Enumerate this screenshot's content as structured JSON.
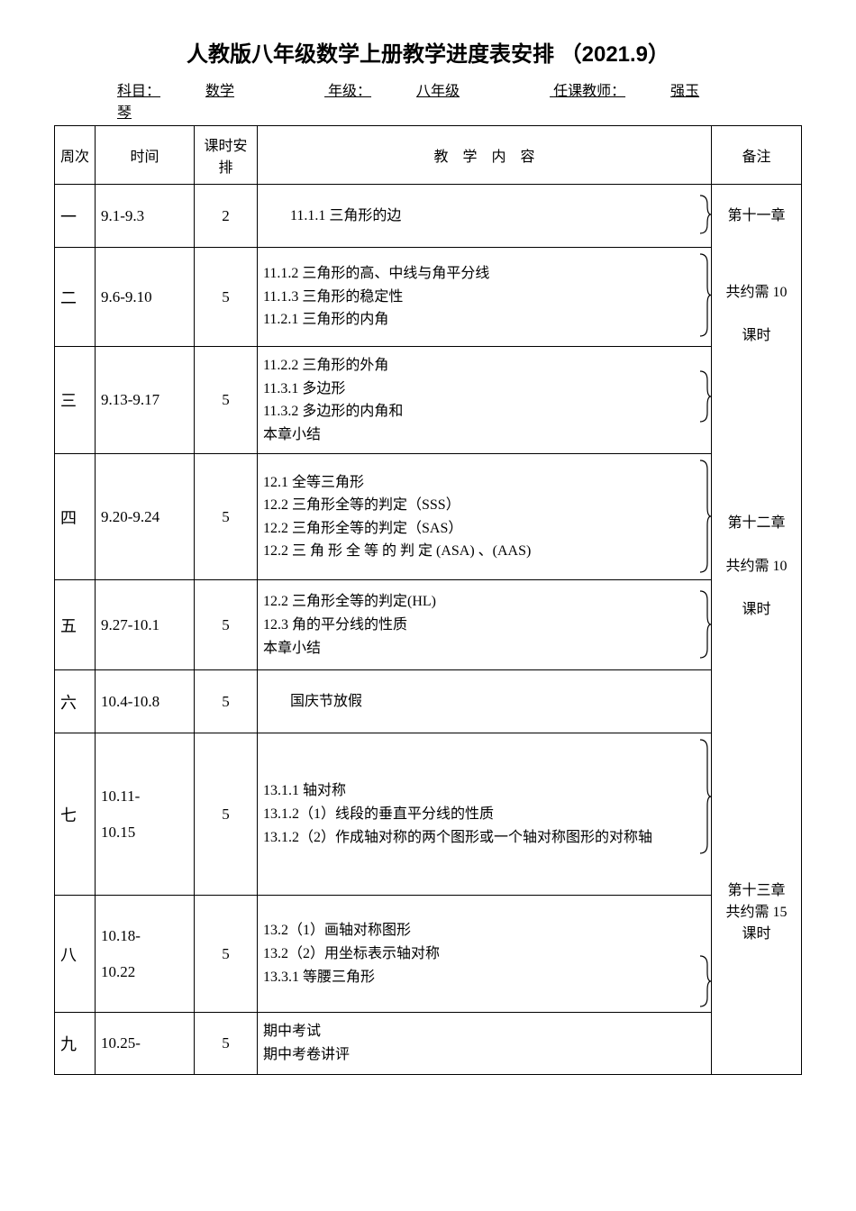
{
  "title": "人教版八年级数学上册教学进度表安排 （2021.9）",
  "subtitle": {
    "subject_label": "科目：",
    "subject": "数学",
    "grade_label": "年级：",
    "grade": "八年级",
    "teacher_label": "任课教师：",
    "teacher": "强玉琴"
  },
  "headers": {
    "week": "周次",
    "time": "时间",
    "hours": "课时安排",
    "content": "教　学　内　容",
    "notes": "备注"
  },
  "rows": [
    {
      "week": "一",
      "time": "9.1-9.3",
      "hours": "2",
      "content": "11.1.1 三角形的边",
      "content_indent": true
    },
    {
      "week": "二",
      "time": "9.6-9.10",
      "hours": "5",
      "content": "11.1.2 三角形的高、中线与角平分线\n11.1.3 三角形的稳定性\n11.2.1 三角形的内角"
    },
    {
      "week": "三",
      "time": "9.13-9.17",
      "hours": "5",
      "content": "11.2.2 三角形的外角\n11.3.1 多边形\n11.3.2 多边形的内角和\n本章小结"
    },
    {
      "week": "四",
      "time": "9.20-9.24",
      "hours": "5",
      "content": "12.1 全等三角形\n12.2 三角形全等的判定（SSS）\n12.2 三角形全等的判定（SAS）\n12.2 三 角 形 全 等 的 判 定 (ASA) 、(AAS)"
    },
    {
      "week": "五",
      "time": "9.27-10.1",
      "hours": "5",
      "content": "12.2 三角形全等的判定(HL)\n12.3 角的平分线的性质\n本章小结"
    },
    {
      "week": "六",
      "time": "10.4-10.8",
      "hours": "5",
      "content": "国庆节放假",
      "content_indent": true
    },
    {
      "week": "七",
      "time": "10.11-\n\n10.15",
      "hours": "5",
      "content": "13.1.1 轴对称\n13.1.2（1）线段的垂直平分线的性质\n13.1.2（2）作成轴对称的两个图形或一个轴对称图形的对称轴"
    },
    {
      "week": "八",
      "time": "10.18-\n\n10.22",
      "hours": "5",
      "content": "13.2（1）画轴对称图形\n13.2（2）用坐标表示轴对称\n13.3.1 等腰三角形"
    },
    {
      "week": "九",
      "time": "10.25-",
      "hours": "5",
      "content": "期中考试\n期中考卷讲评"
    }
  ],
  "notes_groups": [
    {
      "text": "第十一章",
      "rowspan_start": 0
    },
    {
      "text": "共约需 10\n\n课时",
      "rowspan_start": 1
    },
    {
      "text": "第十二章\n\n共约需 10\n\n课时",
      "rowspan_start": 3
    },
    {
      "text": "第十三章\n共约需 15\n课时",
      "rowspan_start": 6
    }
  ]
}
